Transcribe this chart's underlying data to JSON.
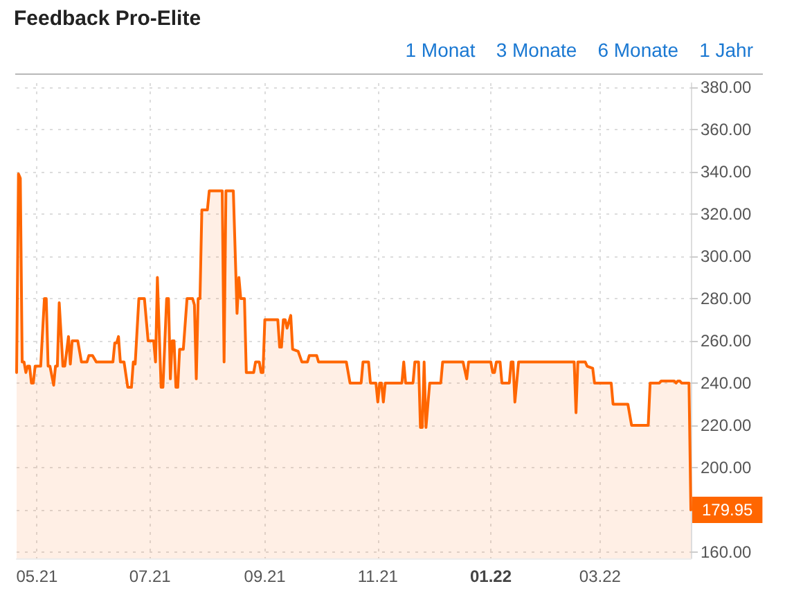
{
  "chart_data": {
    "type": "area",
    "title": "Feedback Pro-Elite",
    "annotations": [
      "1 Monat",
      "3 Monate",
      "6 Monate",
      "1 Jahr",
      {
        "text": "179.95",
        "x": "2022-04-19",
        "y": 179.95
      }
    ],
    "x": [
      "2021-04-20",
      "2021-04-21",
      "2021-04-22",
      "2021-04-23",
      "2021-04-24",
      "2021-04-25",
      "2021-04-26",
      "2021-04-27",
      "2021-04-28",
      "2021-04-29",
      "2021-04-30",
      "2021-05-03",
      "2021-05-05",
      "2021-05-06",
      "2021-05-07",
      "2021-05-08",
      "2021-05-10",
      "2021-05-11",
      "2021-05-12",
      "2021-05-13",
      "2021-05-15",
      "2021-05-16",
      "2021-05-18",
      "2021-05-19",
      "2021-05-20",
      "2021-05-23",
      "2021-05-25",
      "2021-05-28",
      "2021-05-29",
      "2021-05-31",
      "2021-06-02",
      "2021-06-11",
      "2021-06-12",
      "2021-06-13",
      "2021-06-14",
      "2021-06-15",
      "2021-06-17",
      "2021-06-19",
      "2021-06-21",
      "2021-06-22",
      "2021-06-23",
      "2021-06-25",
      "2021-06-28",
      "2021-06-30",
      "2021-07-03",
      "2021-07-04",
      "2021-07-05",
      "2021-07-07",
      "2021-07-08",
      "2021-07-10",
      "2021-07-11",
      "2021-07-12",
      "2021-07-13",
      "2021-07-14",
      "2021-07-15",
      "2021-07-16",
      "2021-07-17",
      "2021-07-19",
      "2021-07-21",
      "2021-07-24",
      "2021-07-25",
      "2021-07-26",
      "2021-07-27",
      "2021-07-28",
      "2021-07-29",
      "2021-08-01",
      "2021-08-02",
      "2021-08-09",
      "2021-08-10",
      "2021-08-11",
      "2021-08-15",
      "2021-08-17",
      "2021-08-18",
      "2021-08-19",
      "2021-08-21",
      "2021-08-22",
      "2021-08-26",
      "2021-08-27",
      "2021-08-29",
      "2021-08-30",
      "2021-08-31",
      "2021-09-01",
      "2021-09-08",
      "2021-09-09",
      "2021-09-10",
      "2021-09-11",
      "2021-09-12",
      "2021-09-13",
      "2021-09-15",
      "2021-09-16",
      "2021-09-19",
      "2021-09-21",
      "2021-09-24",
      "2021-09-25",
      "2021-09-29",
      "2021-09-30",
      "2021-10-06",
      "2021-10-15",
      "2021-10-17",
      "2021-10-23",
      "2021-10-24",
      "2021-10-27",
      "2021-10-28",
      "2021-10-31",
      "2021-11-01",
      "2021-11-02",
      "2021-11-03",
      "2021-11-04",
      "2021-11-05",
      "2021-11-10",
      "2021-11-14",
      "2021-11-15",
      "2021-11-16",
      "2021-11-20",
      "2021-11-21",
      "2021-11-23",
      "2021-11-24",
      "2021-11-25",
      "2021-11-26",
      "2021-11-27",
      "2021-11-29",
      "2021-12-05",
      "2021-12-06",
      "2021-12-17",
      "2021-12-19",
      "2021-12-20",
      "2022-01-01",
      "2022-01-02",
      "2022-01-03",
      "2022-01-04",
      "2022-01-06",
      "2022-01-07",
      "2022-01-11",
      "2022-01-12",
      "2022-01-13",
      "2022-01-14",
      "2022-01-16",
      "2022-02-15",
      "2022-02-16",
      "2022-02-17",
      "2022-02-21",
      "2022-02-22",
      "2022-02-25",
      "2022-02-26",
      "2022-03-07",
      "2022-03-08",
      "2022-03-16",
      "2022-03-18",
      "2022-03-27",
      "2022-03-28",
      "2022-04-02",
      "2022-04-03",
      "2022-04-10",
      "2022-04-11",
      "2022-04-12",
      "2022-04-13",
      "2022-04-14",
      "2022-04-18",
      "2022-04-19"
    ],
    "series": [
      {
        "color": "#ff6600",
        "values": [
          245,
          339,
          337,
          250,
          250,
          245,
          248,
          248,
          240,
          240,
          248,
          248,
          280,
          280,
          248,
          248,
          239,
          248,
          248,
          278,
          248,
          248,
          262,
          249,
          260,
          260,
          250,
          250,
          253,
          253,
          250,
          250,
          259,
          259,
          262,
          250,
          250,
          238,
          238,
          250,
          249,
          280,
          280,
          260,
          260,
          250,
          290,
          238,
          238,
          280,
          280,
          242,
          260,
          260,
          238,
          238,
          256,
          256,
          280,
          280,
          277,
          242,
          280,
          280,
          322,
          322,
          331,
          331,
          250,
          331,
          331,
          273,
          290,
          280,
          280,
          245,
          245,
          250,
          250,
          245,
          245,
          270,
          270,
          257,
          257,
          270,
          270,
          266,
          272,
          256,
          255,
          250,
          250,
          253,
          253,
          250,
          250,
          250,
          240,
          240,
          250,
          250,
          240,
          240,
          231,
          240,
          240,
          231,
          240,
          240,
          240,
          250,
          240,
          240,
          250,
          250,
          219,
          219,
          250,
          219,
          240,
          240,
          250,
          250,
          242,
          250,
          250,
          245,
          245,
          250,
          250,
          240,
          240,
          250,
          250,
          231,
          250,
          250,
          226,
          250,
          250,
          248,
          247,
          240,
          240,
          230,
          230,
          220,
          220,
          240,
          240,
          241,
          241,
          240,
          241,
          241,
          240,
          240,
          179.95
        ]
      }
    ],
    "xlim": [
      "2021-04-20",
      "2022-04-19"
    ],
    "xticks": [
      {
        "value": "2021-05-01",
        "label": "05.21"
      },
      {
        "value": "2021-07-01",
        "label": "07.21"
      },
      {
        "value": "2021-09-01",
        "label": "09.21"
      },
      {
        "value": "2021-11-01",
        "label": "11.21"
      },
      {
        "value": "2022-01-01",
        "label": "01.22"
      },
      {
        "value": "2022-03-01",
        "label": "03.22"
      }
    ],
    "ylim": [
      157,
      382
    ],
    "yticks": [
      {
        "value": 160,
        "label": "160.00"
      },
      {
        "value": 180,
        "label": null
      },
      {
        "value": 200,
        "label": "200.00"
      },
      {
        "value": 220,
        "label": "220.00"
      },
      {
        "value": 240,
        "label": "240.00"
      },
      {
        "value": 260,
        "label": "260.00"
      },
      {
        "value": 280,
        "label": "280.00"
      },
      {
        "value": 300,
        "label": "300.00"
      },
      {
        "value": 320,
        "label": "320.00"
      },
      {
        "value": 340,
        "label": "340.00"
      },
      {
        "value": 360,
        "label": "360.00"
      },
      {
        "value": 380,
        "label": "380.00"
      }
    ],
    "grid": true,
    "marker": "none"
  }
}
